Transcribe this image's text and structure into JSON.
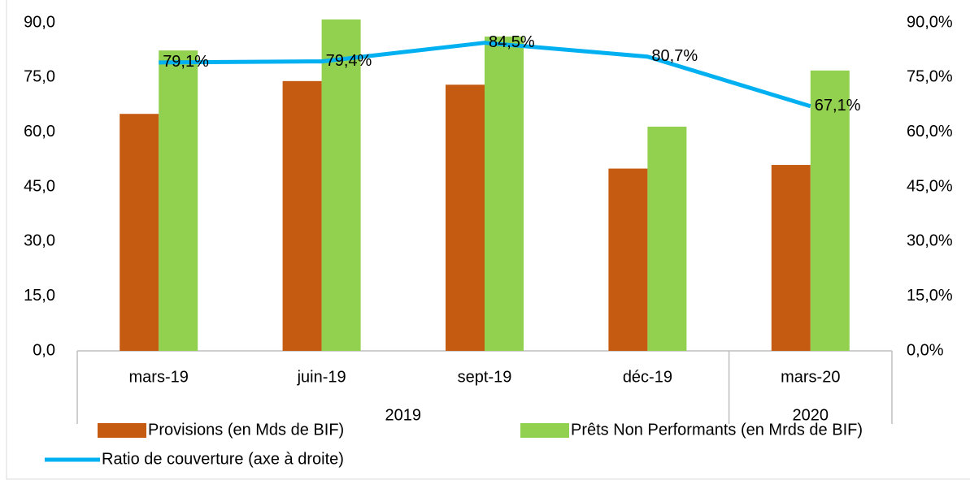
{
  "chart_data": {
    "type": "bar-line",
    "groups": [
      {
        "label": "2019",
        "categories": [
          "mars-19",
          "juin-19",
          "sept-19",
          "déc-19"
        ]
      },
      {
        "label": "2020",
        "categories": [
          "mars-20"
        ]
      }
    ],
    "series": [
      {
        "name": "Provisions (en Mds de BIF)",
        "type": "bar",
        "color": "#c55a11",
        "values": [
          65,
          74,
          73,
          50,
          51
        ]
      },
      {
        "name": "Prêts Non Performants (en Mrds de BIF)",
        "type": "bar",
        "color": "#92d050",
        "values": [
          82.4,
          90.9,
          86.2,
          61.5,
          76.9
        ]
      },
      {
        "name": "Ratio de couverture (axe à droite)",
        "type": "line",
        "axis": "y2",
        "color": "#00b0f0",
        "values": [
          79.1,
          79.4,
          84.5,
          80.7,
          67.1
        ],
        "value_labels": [
          "79,1%",
          "79,4%",
          "84,5%",
          "80,7%",
          "67,1%"
        ]
      }
    ],
    "ylim": [
      0,
      90
    ],
    "yticks": [
      {
        "value": 0,
        "label": "0,0"
      },
      {
        "value": 15,
        "label": "15,0"
      },
      {
        "value": 30,
        "label": "30,0"
      },
      {
        "value": 45,
        "label": "45,0"
      },
      {
        "value": 60,
        "label": "60,0"
      },
      {
        "value": 75,
        "label": "75,0"
      },
      {
        "value": 90,
        "label": "90,0"
      }
    ],
    "y2lim": [
      0,
      90
    ],
    "y2ticks": [
      {
        "value": 0,
        "label": "0,0%"
      },
      {
        "value": 15,
        "label": "15,0%"
      },
      {
        "value": 30,
        "label": "30,0%"
      },
      {
        "value": 45,
        "label": "45,0%"
      },
      {
        "value": 60,
        "label": "60,0%"
      },
      {
        "value": 75,
        "label": "75,0%"
      },
      {
        "value": 90,
        "label": "90,0%"
      }
    ]
  }
}
